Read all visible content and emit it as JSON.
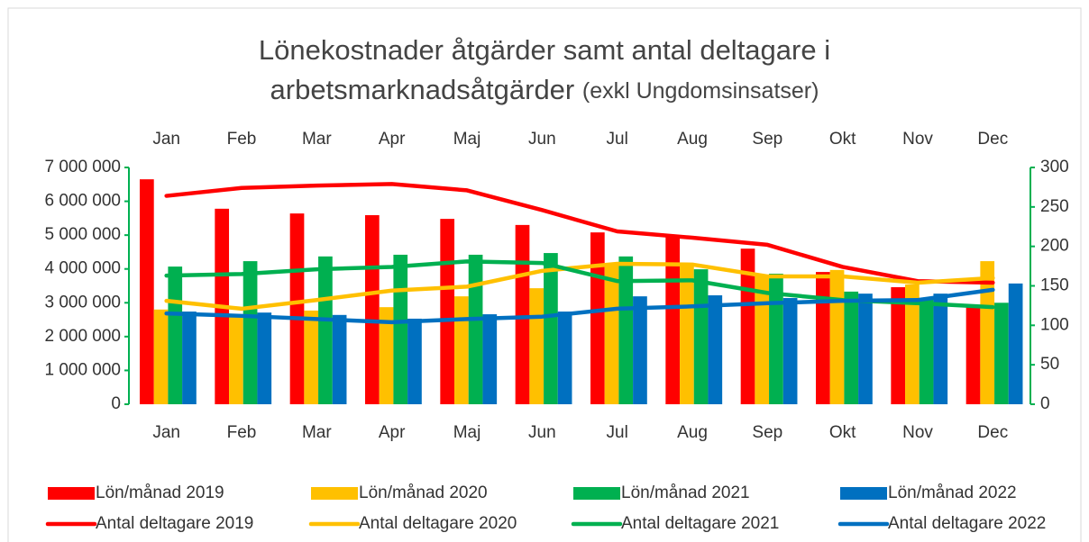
{
  "chart_data": {
    "type": "combo",
    "title": [
      "Lönekostnader åtgärder samt antal deltagare i",
      "arbetsmarknadsåtgärder"
    ],
    "subtitle": "(exkl Ungdomsinsatser)",
    "categories": [
      "Jan",
      "Feb",
      "Mar",
      "Apr",
      "Maj",
      "Jun",
      "Jul",
      "Aug",
      "Sep",
      "Okt",
      "Nov",
      "Dec"
    ],
    "ylim": [
      0,
      7000000
    ],
    "yticks": [
      0,
      {
        "value": 1000000,
        "label": "1 000 000"
      },
      {
        "value": 2000000,
        "label": "2 000 000"
      },
      {
        "value": 3000000,
        "label": "3 000 000"
      },
      {
        "value": 4000000,
        "label": "4 000 000"
      },
      {
        "value": 5000000,
        "label": "5 000 000"
      },
      {
        "value": 6000000,
        "label": "6 000 000"
      },
      {
        "value": 7000000,
        "label": "7 000 000"
      }
    ],
    "y2lim": [
      0,
      300
    ],
    "y2ticks": [
      0,
      50,
      100,
      150,
      200,
      250,
      300
    ],
    "legend": "bottom",
    "axis_color": "#00b050",
    "series": [
      {
        "name": "Lön/månad 2019",
        "type": "bar",
        "axis": "y",
        "color": "#ff0000",
        "values": [
          6650000,
          5780000,
          5640000,
          5590000,
          5480000,
          5300000,
          5080000,
          4980000,
          4600000,
          3910000,
          3460000,
          2900000
        ]
      },
      {
        "name": "Lön/månad 2020",
        "type": "bar",
        "axis": "y",
        "color": "#ffc000",
        "values": [
          2800000,
          2640000,
          2770000,
          2870000,
          3190000,
          3430000,
          4150000,
          4180000,
          3830000,
          3970000,
          3540000,
          4230000
        ]
      },
      {
        "name": "Lön/månad 2021",
        "type": "bar",
        "axis": "y",
        "color": "#00b050",
        "values": [
          4070000,
          4230000,
          4370000,
          4420000,
          4420000,
          4470000,
          4370000,
          3990000,
          3860000,
          3330000,
          3100000,
          3000000
        ]
      },
      {
        "name": "Lön/månad 2022",
        "type": "bar",
        "axis": "y",
        "color": "#0070c0",
        "values": [
          2740000,
          2710000,
          2640000,
          2530000,
          2660000,
          2740000,
          3190000,
          3220000,
          3140000,
          3270000,
          3270000,
          3570000
        ]
      },
      {
        "name": "Antal deltagare 2019",
        "type": "line",
        "axis": "y2",
        "color": "#ff0000",
        "values": [
          264,
          274,
          277,
          279,
          271,
          246,
          219,
          211,
          202,
          174,
          156,
          154
        ]
      },
      {
        "name": "Antal deltagare 2020",
        "type": "line",
        "axis": "y2",
        "color": "#ffc000",
        "values": [
          131,
          121,
          132,
          144,
          149,
          169,
          178,
          177,
          162,
          162,
          154,
          160
        ]
      },
      {
        "name": "Antal deltagare 2021",
        "type": "line",
        "axis": "y2",
        "color": "#00b050",
        "values": [
          163,
          165,
          171,
          174,
          181,
          179,
          156,
          157,
          141,
          132,
          128,
          123
        ]
      },
      {
        "name": "Antal deltagare 2022",
        "type": "line",
        "axis": "y2",
        "color": "#0070c0",
        "values": [
          115,
          112,
          108,
          104,
          108,
          111,
          121,
          124,
          128,
          131,
          132,
          145
        ]
      }
    ]
  }
}
